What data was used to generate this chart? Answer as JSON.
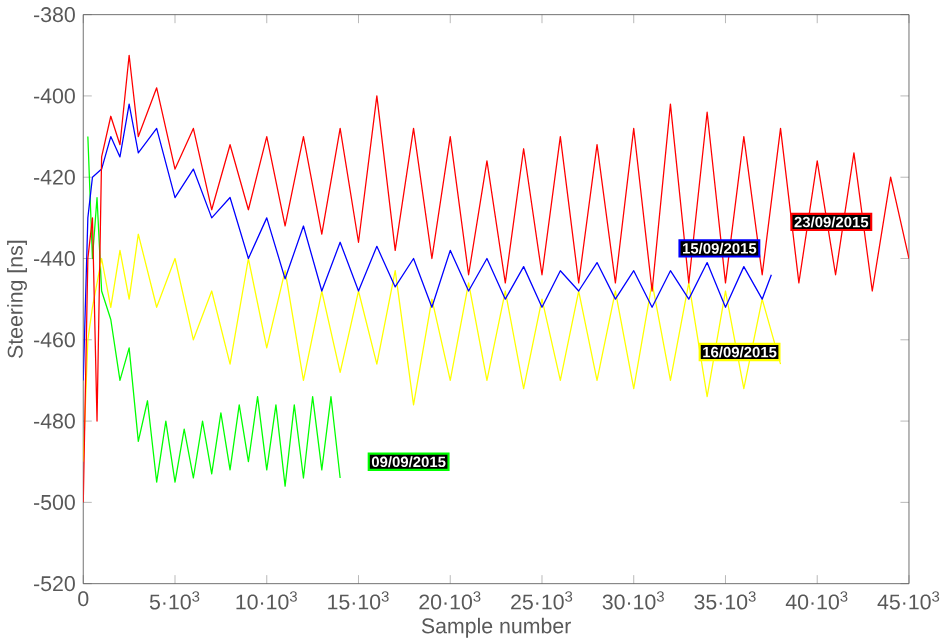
{
  "chart_data": {
    "type": "line",
    "xlabel": "Sample number",
    "ylabel": "Steering [ns]",
    "xlim": [
      0,
      45000
    ],
    "ylim": [
      -520,
      -380
    ],
    "xticks": [
      0,
      {
        "value": 5000,
        "label": "5·10$^{3}$"
      },
      {
        "value": 10000,
        "label": "10·10$^{3}$"
      },
      {
        "value": 15000,
        "label": "15·10$^{3}$"
      },
      {
        "value": 20000,
        "label": "20·10$^{3}$"
      },
      {
        "value": 25000,
        "label": "25·10$^{3}$"
      },
      {
        "value": 30000,
        "label": "30·10$^{3}$"
      },
      {
        "value": 35000,
        "label": "35·10$^{3}$"
      },
      {
        "value": 40000,
        "label": "40·10$^{3}$"
      },
      {
        "value": 45000,
        "label": "45·10$^{3}$"
      }
    ],
    "yticks": [
      -520,
      -500,
      -480,
      -460,
      -440,
      -420,
      -400,
      -380
    ],
    "series": [
      {
        "name": "09/09/2015",
        "color": "#00ff00",
        "x": [
          250,
          500,
          750,
          1000,
          1500,
          2000,
          2500,
          3000,
          3500,
          4000,
          4500,
          5000,
          5500,
          6000,
          6500,
          7000,
          7500,
          8000,
          8500,
          9000,
          9500,
          10000,
          10500,
          11000,
          11500,
          12000,
          12500,
          13000,
          13500,
          14000
        ],
        "values": [
          -410,
          -440,
          -425,
          -448,
          -455,
          -470,
          -462,
          -485,
          -475,
          -495,
          -480,
          -495,
          -482,
          -494,
          -480,
          -493,
          -478,
          -492,
          -476,
          -490,
          -474,
          -492,
          -476,
          -496,
          -476,
          -494,
          -474,
          -492,
          -474,
          -494
        ]
      },
      {
        "name": "16/09/2015",
        "color": "#ffff00",
        "x": [
          0,
          250,
          500,
          1000,
          1500,
          2000,
          2500,
          3000,
          4000,
          5000,
          6000,
          7000,
          8000,
          9000,
          10000,
          11000,
          12000,
          13000,
          14000,
          15000,
          16000,
          17000,
          18000,
          19000,
          20000,
          21000,
          22000,
          23000,
          24000,
          25000,
          26000,
          27000,
          28000,
          29000,
          30000,
          31000,
          32000,
          33000,
          34000,
          35000,
          36000,
          37000,
          38000
        ],
        "values": [
          -490,
          -460,
          -452,
          -440,
          -452,
          -438,
          -450,
          -434,
          -452,
          -440,
          -460,
          -448,
          -466,
          -440,
          -462,
          -443,
          -470,
          -448,
          -468,
          -448,
          -466,
          -443,
          -476,
          -450,
          -470,
          -446,
          -470,
          -448,
          -472,
          -450,
          -470,
          -448,
          -470,
          -448,
          -472,
          -446,
          -470,
          -446,
          -474,
          -448,
          -472,
          -450,
          -466
        ]
      },
      {
        "name": "15/09/2015",
        "color": "#0000ff",
        "x": [
          0,
          250,
          500,
          1000,
          1500,
          2000,
          2500,
          3000,
          4000,
          5000,
          6000,
          7000,
          8000,
          9000,
          10000,
          11000,
          12000,
          13000,
          14000,
          15000,
          16000,
          17000,
          18000,
          19000,
          20000,
          21000,
          22000,
          23000,
          24000,
          25000,
          26000,
          27000,
          28000,
          29000,
          30000,
          31000,
          32000,
          33000,
          34000,
          35000,
          36000,
          37000,
          37500
        ],
        "values": [
          -470,
          -430,
          -420,
          -418,
          -410,
          -415,
          -402,
          -414,
          -408,
          -425,
          -418,
          -430,
          -425,
          -440,
          -430,
          -445,
          -432,
          -448,
          -436,
          -448,
          -437,
          -447,
          -440,
          -452,
          -438,
          -448,
          -440,
          -450,
          -442,
          -452,
          -443,
          -448,
          -441,
          -450,
          -443,
          -452,
          -443,
          -450,
          -441,
          -452,
          -442,
          -450,
          -444
        ]
      },
      {
        "name": "23/09/2015",
        "color": "#ff0000",
        "x": [
          0,
          250,
          500,
          750,
          1000,
          1500,
          2000,
          2500,
          3000,
          4000,
          5000,
          6000,
          7000,
          8000,
          9000,
          10000,
          11000,
          12000,
          13000,
          14000,
          15000,
          16000,
          17000,
          18000,
          19000,
          20000,
          21000,
          22000,
          23000,
          24000,
          25000,
          26000,
          27000,
          28000,
          29000,
          30000,
          31000,
          32000,
          33000,
          34000,
          35000,
          36000,
          37000,
          38000,
          39000,
          40000,
          41000,
          42000,
          43000,
          44000,
          45000
        ],
        "values": [
          -500,
          -440,
          -430,
          -480,
          -415,
          -405,
          -412,
          -390,
          -410,
          -398,
          -418,
          -408,
          -428,
          -412,
          -428,
          -410,
          -432,
          -410,
          -434,
          -408,
          -436,
          -400,
          -438,
          -408,
          -440,
          -410,
          -444,
          -416,
          -446,
          -413,
          -444,
          -410,
          -446,
          -412,
          -446,
          -408,
          -448,
          -402,
          -446,
          -404,
          -446,
          -410,
          -444,
          -408,
          -446,
          -416,
          -444,
          -414,
          -448,
          -420,
          -440
        ]
      }
    ]
  }
}
